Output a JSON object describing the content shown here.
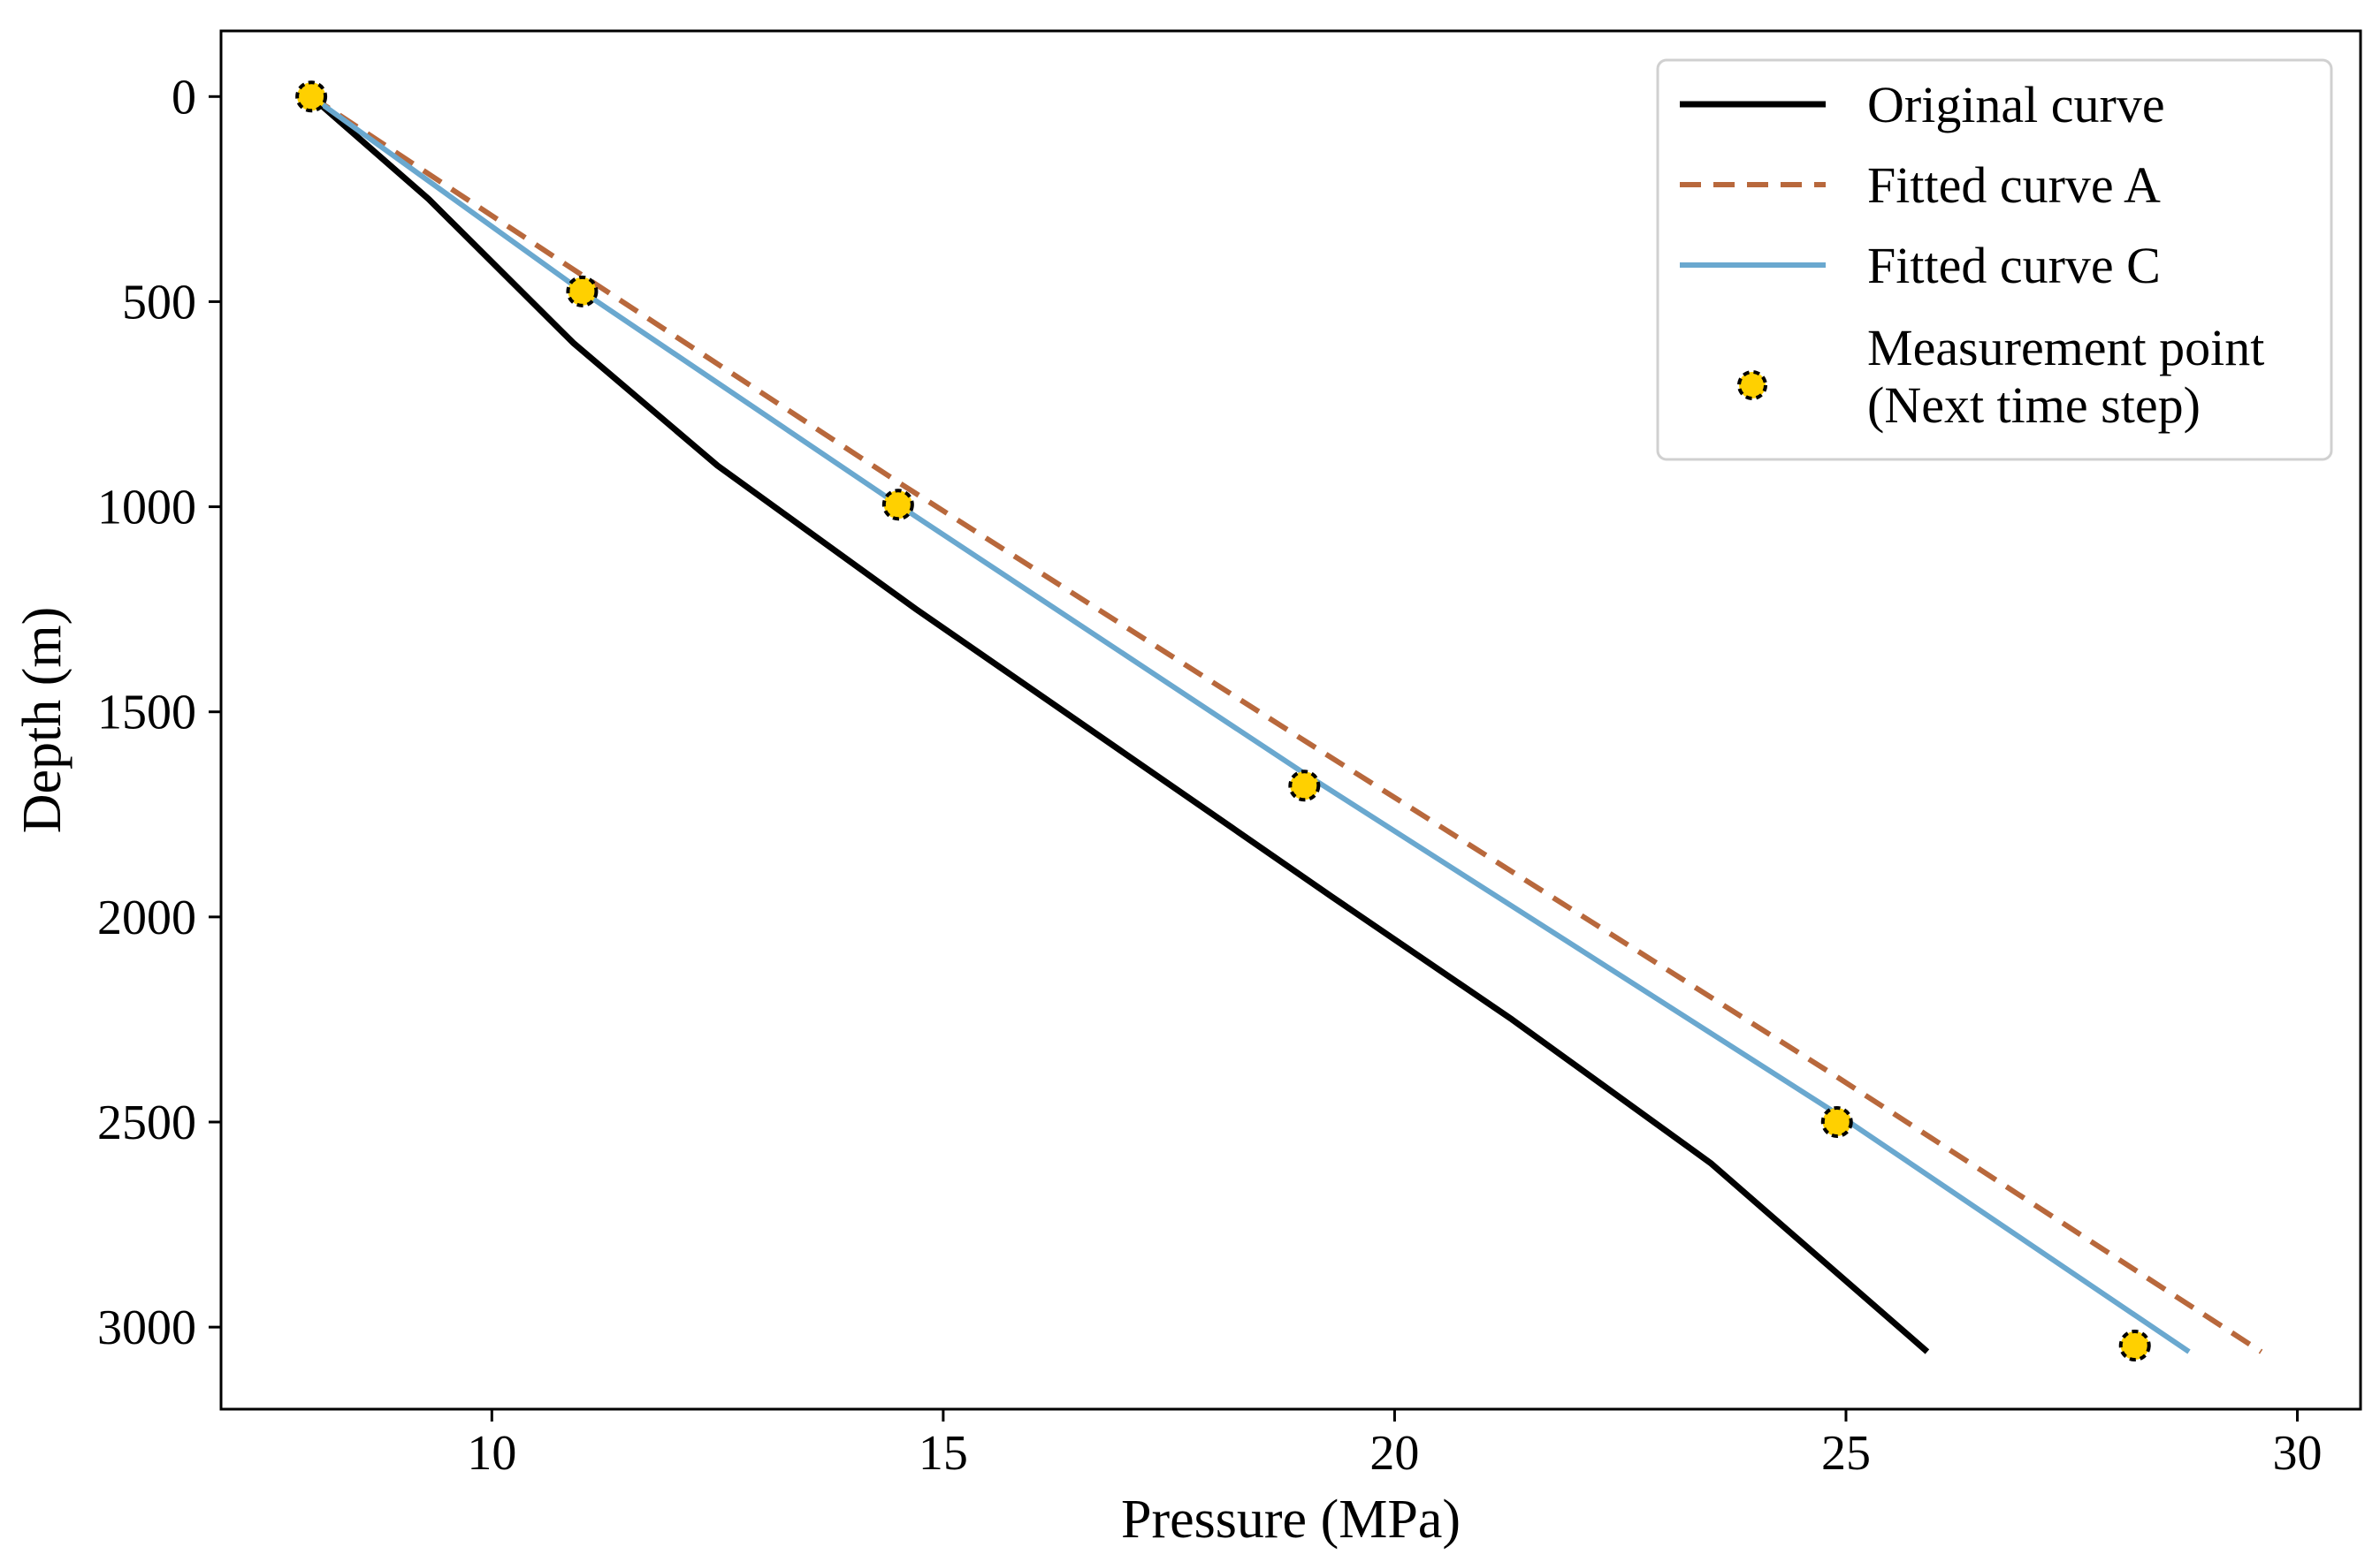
{
  "chart_data": {
    "type": "line",
    "title": "",
    "xlabel": "Pressure (MPa)",
    "ylabel": "Depth (m)",
    "xlim": [
      7,
      30.7
    ],
    "ylim": [
      3200,
      -160
    ],
    "y_inverted": true,
    "grid": false,
    "xticks": [
      10,
      15,
      20,
      25,
      30
    ],
    "xtick_labels": [
      "10",
      "15",
      "20",
      "25",
      "30"
    ],
    "yticks": [
      0,
      500,
      1000,
      1500,
      2000,
      2500,
      3000
    ],
    "ytick_labels": [
      "0",
      "500",
      "1000",
      "1500",
      "2000",
      "2500",
      "3000"
    ],
    "legend_position": "top-right",
    "series": [
      {
        "name": "Original curve",
        "style": "solid",
        "color": "#000000",
        "points": [
          [
            8.0,
            0
          ],
          [
            9.3,
            250
          ],
          [
            10.9,
            600
          ],
          [
            12.5,
            900
          ],
          [
            14.7,
            1250
          ],
          [
            17.0,
            1600
          ],
          [
            19.3,
            1950
          ],
          [
            21.3,
            2250
          ],
          [
            23.5,
            2600
          ],
          [
            25.9,
            3060
          ]
        ]
      },
      {
        "name": "Fitted curve A",
        "style": "dashed",
        "color": "#B8683C",
        "points": [
          [
            8.0,
            0
          ],
          [
            11.1,
            450
          ],
          [
            14.5,
            940
          ],
          [
            19.0,
            1570
          ],
          [
            24.9,
            2390
          ],
          [
            29.6,
            3060
          ]
        ]
      },
      {
        "name": "Fitted curve C",
        "style": "solid",
        "color": "#6AA8CF",
        "points": [
          [
            8.0,
            0
          ],
          [
            11.0,
            475
          ],
          [
            14.5,
            995
          ],
          [
            19.0,
            1650
          ],
          [
            24.9,
            2480
          ],
          [
            28.8,
            3060
          ]
        ]
      },
      {
        "name": "Measurement point\n(Next time step)",
        "type": "scatter",
        "marker_fill": "#FFD000",
        "marker_edge": "#000000",
        "points": [
          [
            8.0,
            0
          ],
          [
            11.0,
            475
          ],
          [
            14.5,
            995
          ],
          [
            19.0,
            1680
          ],
          [
            24.9,
            2500
          ],
          [
            28.2,
            3045
          ]
        ]
      }
    ],
    "legend": {
      "items": [
        {
          "label": "Original curve",
          "kind": "line",
          "style": "solid",
          "color": "#000000"
        },
        {
          "label": "Fitted curve A",
          "kind": "line",
          "style": "dashed",
          "color": "#B8683C"
        },
        {
          "label": "Fitted curve C",
          "kind": "line",
          "style": "solid",
          "color": "#6AA8CF"
        },
        {
          "label": "Measurement point",
          "label2": "(Next time step)",
          "kind": "marker",
          "color": "#FFD000"
        }
      ]
    }
  }
}
